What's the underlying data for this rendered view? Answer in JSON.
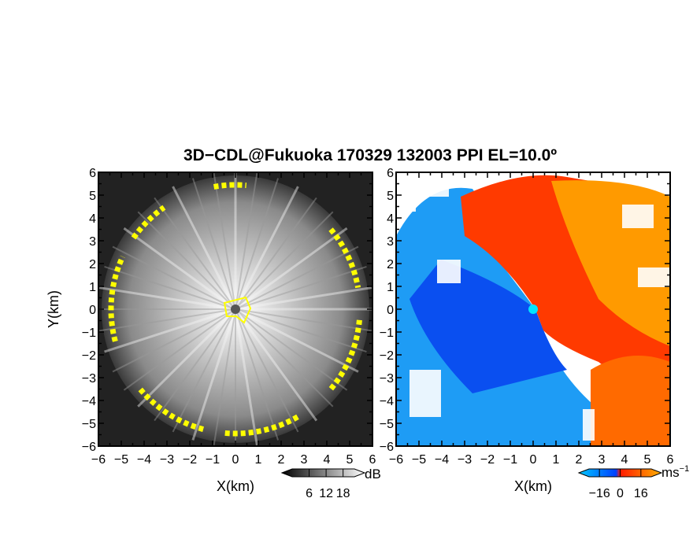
{
  "title": "3D−CDL@Fukuoka 170329 132003 PPI EL=10.0º",
  "chart_data": [
    {
      "type": "heatmap",
      "panel": "left",
      "xlabel": "X(km)",
      "ylabel": "Y(km)",
      "xlim": [
        -6,
        6
      ],
      "ylim": [
        -6,
        6
      ],
      "x_ticks": [
        "−6",
        "−5",
        "−4",
        "−3",
        "−2",
        "−1",
        "0",
        "1",
        "2",
        "3",
        "4",
        "5",
        "6"
      ],
      "y_ticks": [
        "−6",
        "−5",
        "−4",
        "−3",
        "−2",
        "−1",
        "0",
        "1",
        "2",
        "3",
        "4",
        "5",
        "6"
      ],
      "colorbar": {
        "label": "dB",
        "tick_labels": [
          "6",
          "12",
          "18"
        ],
        "ticks": [
          6,
          12,
          18
        ],
        "range": [
          0,
          22
        ],
        "colors": [
          "#000000",
          "#ffffff"
        ]
      },
      "highlight_color": "#ffff00",
      "background_colors": [
        "#1a1a1a",
        "#f0f0f0"
      ]
    },
    {
      "type": "heatmap",
      "panel": "right",
      "xlabel": "X(km)",
      "ylabel": "",
      "xlim": [
        -6,
        6
      ],
      "ylim": [
        -6,
        6
      ],
      "x_ticks": [
        "−6",
        "−5",
        "−4",
        "−3",
        "−2",
        "−1",
        "0",
        "1",
        "2",
        "3",
        "4",
        "5",
        "6"
      ],
      "y_ticks": [
        "−6",
        "−5",
        "−4",
        "−3",
        "−2",
        "−1",
        "0",
        "1",
        "2",
        "3",
        "4",
        "5",
        "6"
      ],
      "colorbar": {
        "label": "ms",
        "label_sup": "−1",
        "tick_labels": [
          "−16",
          "0",
          "16"
        ],
        "ticks": [
          -16,
          0,
          16
        ],
        "range": [
          -24,
          24
        ],
        "colors": [
          "#00c8ff",
          "#0050ff",
          "#ff2000",
          "#ffb000"
        ]
      },
      "marker_color": "#00e5ff"
    }
  ]
}
